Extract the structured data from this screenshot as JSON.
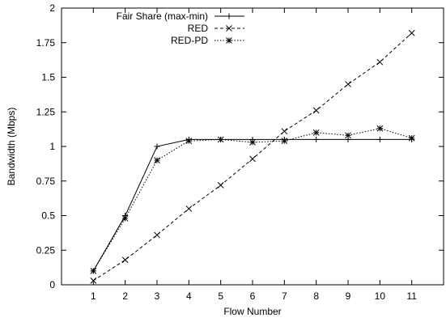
{
  "chart_data": {
    "type": "line",
    "title": "",
    "xlabel": "Flow Number",
    "ylabel": "Bandwidth (Mbps)",
    "xlim": [
      0,
      12
    ],
    "ylim": [
      0,
      2
    ],
    "x_ticks": [
      1,
      2,
      3,
      4,
      5,
      6,
      7,
      8,
      9,
      10,
      11
    ],
    "y_ticks": [
      0,
      0.25,
      0.5,
      0.75,
      1,
      1.25,
      1.5,
      1.75,
      2
    ],
    "y_tick_labels": [
      "0",
      "0.25",
      "0.5",
      "0.75",
      "1",
      "1.25",
      "1.5",
      "1.75",
      "2"
    ],
    "x_tick_labels": [
      "1",
      "2",
      "3",
      "4",
      "5",
      "6",
      "7",
      "8",
      "9",
      "10",
      "11"
    ],
    "grid": false,
    "legend_position": "top-left",
    "x": [
      1,
      2,
      3,
      4,
      5,
      6,
      7,
      8,
      9,
      10,
      11
    ],
    "series": [
      {
        "name": "Fair Share (max-min)",
        "marker": "plus",
        "line": "solid",
        "values": [
          0.1,
          0.5,
          1.0,
          1.05,
          1.05,
          1.05,
          1.05,
          1.05,
          1.05,
          1.05,
          1.05
        ]
      },
      {
        "name": "RED",
        "marker": "cross",
        "line": "dashed",
        "values": [
          0.03,
          0.18,
          0.36,
          0.55,
          0.72,
          0.91,
          1.11,
          1.26,
          1.45,
          1.61,
          1.82
        ]
      },
      {
        "name": "RED-PD",
        "marker": "asterisk",
        "line": "dotted",
        "values": [
          0.1,
          0.48,
          0.9,
          1.04,
          1.05,
          1.03,
          1.04,
          1.1,
          1.08,
          1.13,
          1.06
        ]
      }
    ]
  }
}
